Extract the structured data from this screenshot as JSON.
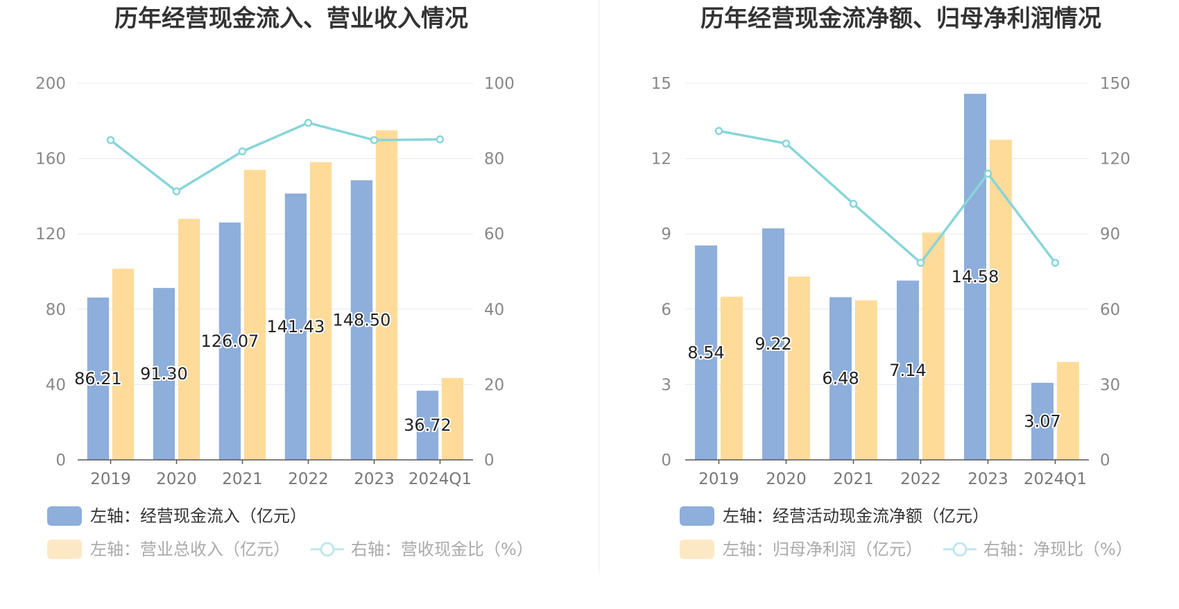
{
  "colors": {
    "bar_primary": "#8eaedb",
    "bar_secondary": "#ffdb9a",
    "line": "#88d5d9",
    "grid": "#e3e8f2",
    "axis": "#555555",
    "legend_active_text": "#333333",
    "legend_inactive_text": "#aaaaaa",
    "legend_secondary_swatch": "#fde8c6",
    "legend_line_swatch": "#bfe8ea"
  },
  "chart_data": [
    {
      "type": "bar",
      "title": "历年经营现金流入、营业收入情况",
      "categories": [
        "2019",
        "2020",
        "2021",
        "2022",
        "2023",
        "2024Q1"
      ],
      "ylim_left": [
        0,
        200
      ],
      "ylim_right": [
        0,
        100
      ],
      "left_ticks": [
        "0",
        "40",
        "80",
        "120",
        "160",
        "200"
      ],
      "right_ticks": [
        "0",
        "20",
        "40",
        "60",
        "80",
        "100"
      ],
      "grid": true,
      "legend_position": "bottom",
      "series": [
        {
          "name": "左轴：经营现金流入（亿元）",
          "axis": "left",
          "kind": "bar",
          "values": [
            86.21,
            91.3,
            126.07,
            141.43,
            148.5,
            36.72
          ]
        },
        {
          "name": "左轴：营业总收入（亿元）",
          "axis": "left",
          "kind": "bar",
          "values": [
            101.5,
            128,
            154,
            158,
            175,
            43.5
          ]
        },
        {
          "name": "右轴：营收现金比（%）",
          "axis": "right",
          "kind": "line",
          "values": [
            84.9,
            71.3,
            81.9,
            89.5,
            84.9,
            85.1
          ]
        }
      ],
      "data_labels": [
        "86.21",
        "91.30",
        "126.07",
        "141.43",
        "148.50",
        "36.72"
      ]
    },
    {
      "type": "bar",
      "title": "历年经营现金流净额、归母净利润情况",
      "categories": [
        "2019",
        "2020",
        "2021",
        "2022",
        "2023",
        "2024Q1"
      ],
      "ylim_left": [
        0,
        15
      ],
      "ylim_right": [
        0,
        150
      ],
      "left_ticks": [
        "0",
        "3",
        "6",
        "9",
        "12",
        "15"
      ],
      "right_ticks": [
        "0",
        "30",
        "60",
        "90",
        "120",
        "150"
      ],
      "grid": true,
      "legend_position": "bottom",
      "series": [
        {
          "name": "左轴：经营活动现金流净额（亿元）",
          "axis": "left",
          "kind": "bar",
          "values": [
            8.54,
            9.22,
            6.48,
            7.14,
            14.58,
            3.07
          ]
        },
        {
          "name": "左轴：归母净利润（亿元）",
          "axis": "left",
          "kind": "bar",
          "values": [
            6.5,
            7.3,
            6.35,
            9.05,
            12.75,
            3.9
          ]
        },
        {
          "name": "右轴：净现比（%）",
          "axis": "right",
          "kind": "line",
          "values": [
            131,
            126,
            102,
            78.5,
            114,
            78.5
          ]
        }
      ],
      "data_labels": [
        "8.54",
        "9.22",
        "6.48",
        "7.14",
        "14.58",
        "3.07"
      ]
    }
  ]
}
